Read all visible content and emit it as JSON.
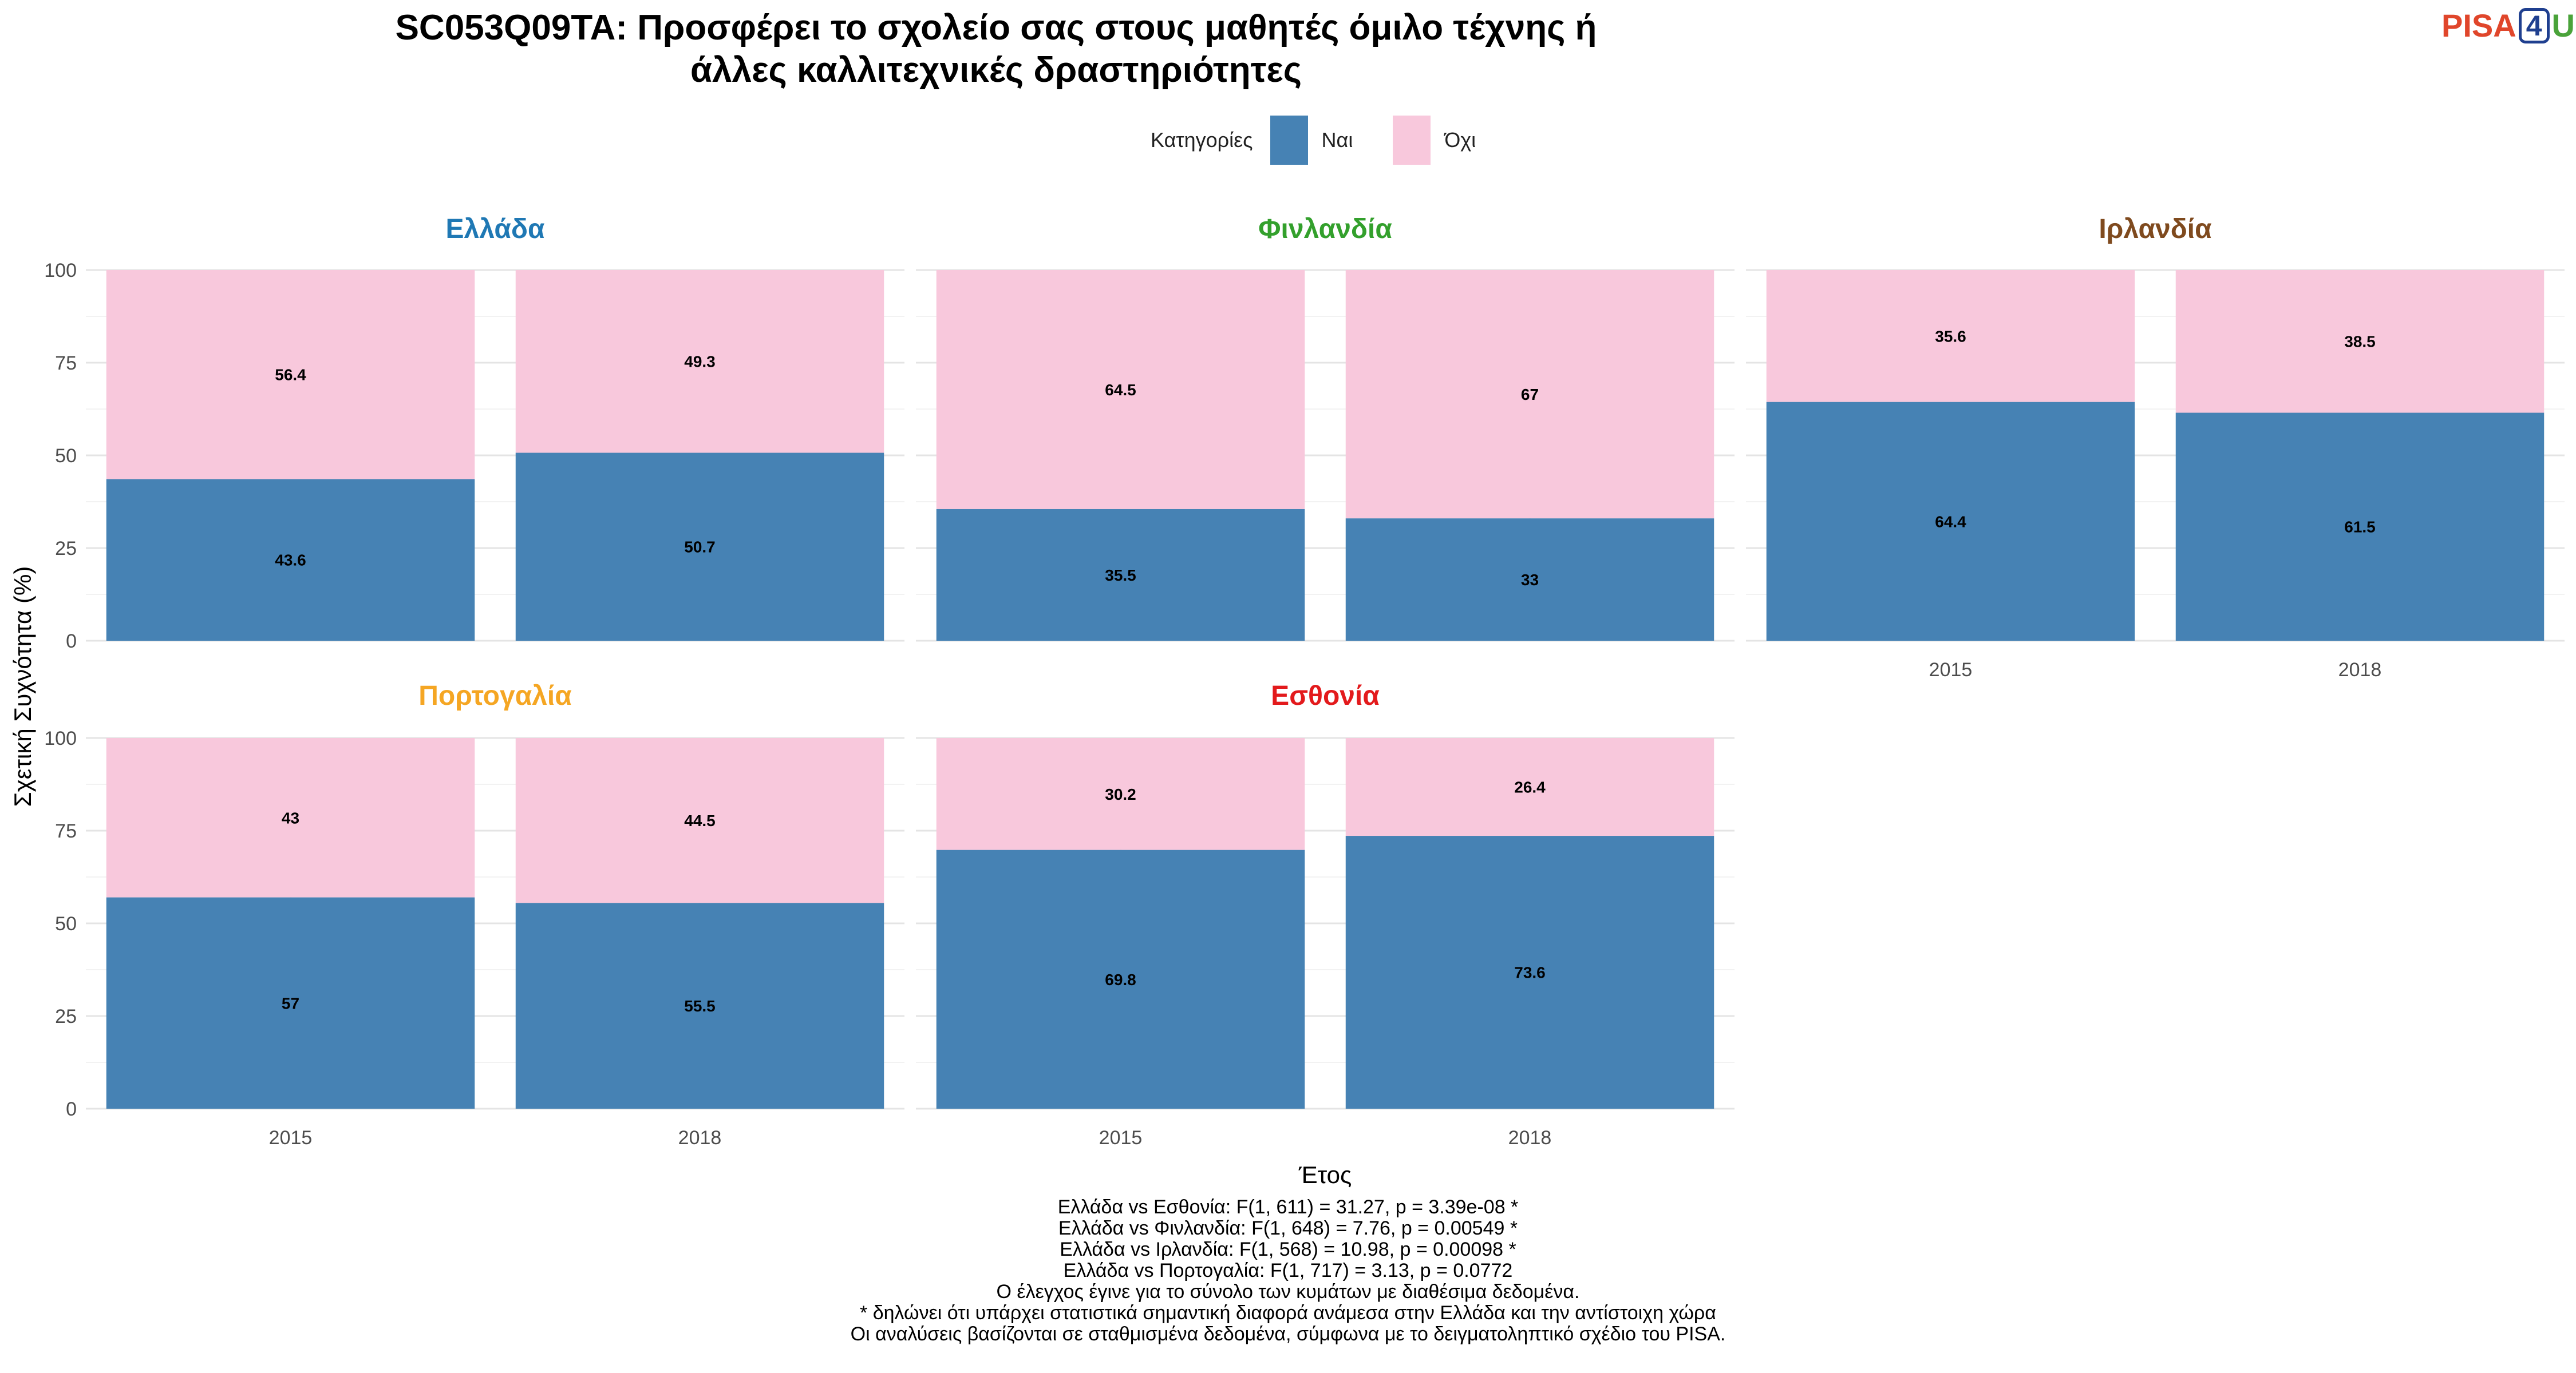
{
  "title_lines": [
    "SC053Q09TA: Προσφέρει το σχολείο σας στους μαθητές όμιλο τέχνης ή",
    "άλλες καλλιτεχνικές δραστηριότητες"
  ],
  "logo": {
    "left": "PISA",
    "mid": "4",
    "right": "U"
  },
  "legend": {
    "title": "Κατηγορίες",
    "items": [
      {
        "label": "Ναι",
        "color": "#4682B4"
      },
      {
        "label": "Όχι",
        "color": "#F8C8DC"
      }
    ]
  },
  "notes": [
    "Ελλάδα vs Εσθονία: F(1, 611) = 31.27, p = 3.39e-08 *",
    "Ελλάδα vs Φινλανδία: F(1, 648) = 7.76, p = 0.00549 *",
    "Ελλάδα vs Ιρλανδία: F(1, 568) = 10.98, p = 0.00098 *",
    "Ελλάδα vs Πορτογαλία: F(1, 717) = 3.13, p = 0.0772",
    "Ο έλεγχος έγινε για το σύνολο των κυμάτων με διαθέσιμα δεδομένα.",
    "* δηλώνει ότι υπάρχει στατιστικά σημαντική διαφορά ανάμεσα στην Ελλάδα και την αντίστοιχη χώρα",
    "Οι αναλύσεις βασίζονται σε σταθμισμένα δεδομένα, σύμφωνα με το δειγματοληπτικό σχέδιο του PISA."
  ],
  "chart_data": {
    "type": "bar",
    "stacked": true,
    "xlabel": "Έτος",
    "ylabel": "Σχετική Συχνότητα (%)",
    "ylim": [
      0,
      100
    ],
    "yticks": [
      0,
      25,
      50,
      75,
      100
    ],
    "categories": [
      "2015",
      "2018"
    ],
    "grid": true,
    "legend_position": "top",
    "series_colors": {
      "Ναι": "#4682B4",
      "Όχι": "#F8C8DC"
    },
    "panels": [
      {
        "name": "Ελλάδα",
        "color": "#1f78b4",
        "values": {
          "Ναι": [
            43.6,
            50.7
          ],
          "Όχι": [
            56.4,
            49.3
          ]
        },
        "labels": {
          "Ναι": [
            "43.6",
            "50.7"
          ],
          "Όχι": [
            "56.4",
            "49.3"
          ]
        }
      },
      {
        "name": "Φινλανδία",
        "color": "#33a02c",
        "values": {
          "Ναι": [
            35.5,
            33
          ],
          "Όχι": [
            64.5,
            67
          ]
        },
        "labels": {
          "Ναι": [
            "35.5",
            "33"
          ],
          "Όχι": [
            "64.5",
            "67"
          ]
        }
      },
      {
        "name": "Ιρλανδία",
        "color": "#7f4a1e",
        "values": {
          "Ναι": [
            64.4,
            61.5
          ],
          "Όχι": [
            35.6,
            38.5
          ]
        },
        "labels": {
          "Ναι": [
            "64.4",
            "61.5"
          ],
          "Όχι": [
            "35.6",
            "38.5"
          ]
        }
      },
      {
        "name": "Πορτογαλία",
        "color": "#f5a623",
        "values": {
          "Ναι": [
            57,
            55.5
          ],
          "Όχι": [
            43,
            44.5
          ]
        },
        "labels": {
          "Ναι": [
            "57",
            "55.5"
          ],
          "Όχι": [
            "43",
            "44.5"
          ]
        }
      },
      {
        "name": "Εσθονία",
        "color": "#e31a1c",
        "values": {
          "Ναι": [
            69.8,
            73.6
          ],
          "Όχι": [
            30.2,
            26.4
          ]
        },
        "labels": {
          "Ναι": [
            "69.8",
            "73.6"
          ],
          "Όχι": [
            "30.2",
            "26.4"
          ]
        }
      }
    ]
  }
}
